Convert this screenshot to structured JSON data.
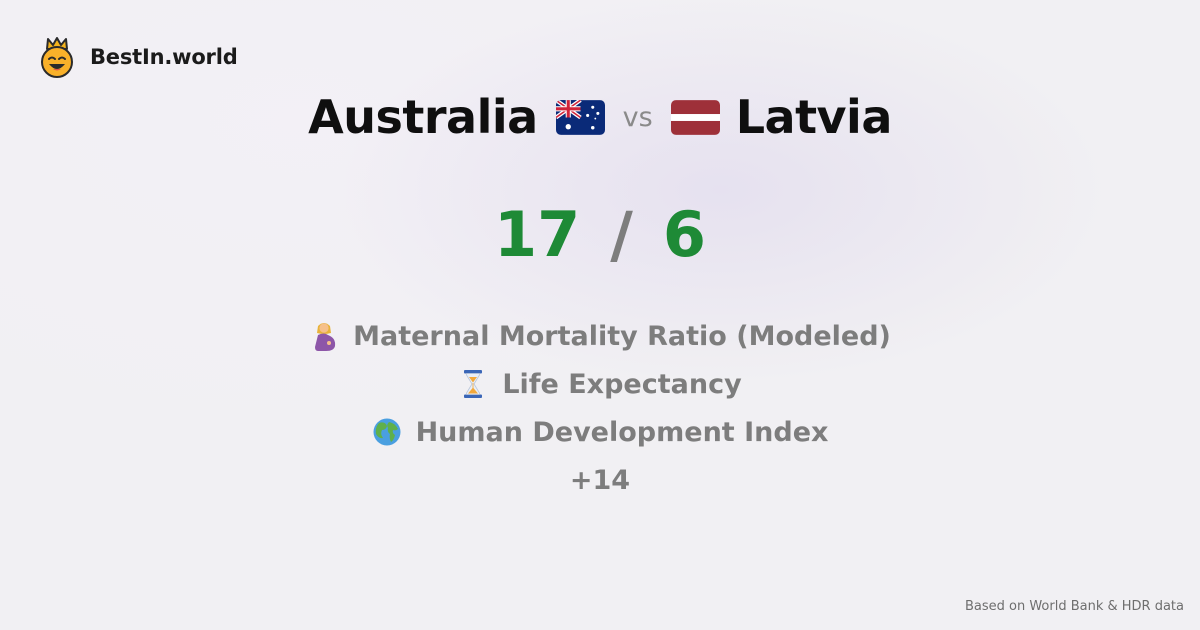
{
  "brand": {
    "name": "BestIn.world",
    "logo_icon": "crown-smiley-icon"
  },
  "comparison": {
    "left_country": "Australia",
    "left_flag_icon": "australia-flag-icon",
    "vs": "vs",
    "right_country": "Latvia",
    "right_flag_icon": "latvia-flag-icon"
  },
  "score": {
    "left": "17",
    "separator": "/",
    "right": "6",
    "color": "#1e8a36"
  },
  "metrics": [
    {
      "label": "Maternal Mortality Ratio (Modeled)",
      "icon": "pregnant-woman-icon"
    },
    {
      "label": "Life Expectancy",
      "icon": "hourglass-icon"
    },
    {
      "label": "Human Development Index",
      "icon": "globe-icon"
    }
  ],
  "more": "+14",
  "source": "Based on World Bank & HDR data"
}
